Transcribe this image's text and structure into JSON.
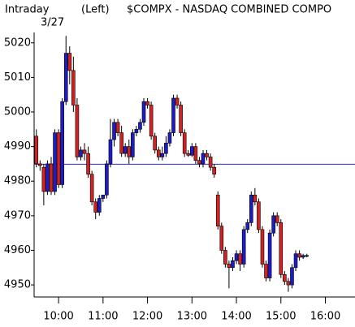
{
  "chart_data": {
    "type": "candlestick",
    "title": "$COMPX - NASDAQ COMBINED COMPO",
    "period": "Intraday",
    "date": "3/27",
    "axis_side": "(Left)",
    "up_color": "#1c1cc8",
    "down_color": "#d42222",
    "reference_line": {
      "value": 4984.9,
      "color": "#2a2ad0"
    },
    "xlim": [
      567,
      1000
    ],
    "ylim": [
      4946.5,
      5023
    ],
    "yticks": [
      4950,
      4960,
      4970,
      4980,
      4990,
      5000,
      5010,
      5020
    ],
    "xticks": [
      {
        "value": 600,
        "label": "10:00"
      },
      {
        "value": 660,
        "label": "11:00"
      },
      {
        "value": 720,
        "label": "12:00"
      },
      {
        "value": 780,
        "label": "13:00"
      },
      {
        "value": 840,
        "label": "14:00"
      },
      {
        "value": 900,
        "label": "15:00"
      },
      {
        "value": 960,
        "label": "16:00"
      }
    ],
    "x": [
      570,
      575,
      580,
      585,
      590,
      595,
      600,
      605,
      610,
      615,
      620,
      625,
      630,
      635,
      640,
      645,
      650,
      655,
      660,
      665,
      670,
      675,
      680,
      685,
      690,
      695,
      700,
      705,
      710,
      715,
      720,
      725,
      730,
      735,
      740,
      745,
      750,
      755,
      760,
      765,
      770,
      775,
      780,
      785,
      790,
      795,
      800,
      805,
      810,
      815,
      820,
      825,
      830,
      835,
      840,
      845,
      850,
      855,
      860,
      865,
      870,
      875,
      880,
      885,
      890,
      895,
      900,
      905,
      910,
      915,
      920,
      925,
      930,
      935
    ],
    "open": [
      4993,
      4985,
      4984,
      4977,
      4985,
      4977,
      4994,
      4979,
      5003,
      5017,
      5012,
      5002,
      4987,
      4989,
      4988,
      4982,
      4974,
      4971,
      4975,
      4976,
      4985,
      4992,
      4997,
      4994,
      4988,
      4990,
      4987,
      4994,
      4995,
      4997,
      5003,
      5002,
      4993,
      4989,
      4987,
      4988,
      4991,
      4994,
      5004,
      5002,
      4994,
      4988,
      4987.5,
      4990,
      4986,
      4985,
      4988,
      4987,
      4984,
      4976,
      4967,
      4960,
      4956,
      4955,
      4957,
      4959,
      4956,
      4966,
      4968,
      4976,
      4974,
      4966,
      4956,
      4952,
      4965,
      4970,
      4968,
      4953,
      4951,
      4950,
      4955,
      4959,
      4958,
      4958.5
    ],
    "high": [
      4995,
      4986,
      4985,
      4986,
      4987,
      4995,
      4995,
      5004,
      5022,
      5019,
      5016,
      5004,
      4990,
      4991,
      4990,
      4983,
      4975,
      4976,
      4976,
      4986,
      4998,
      4998,
      4998,
      4996,
      4991,
      4992,
      4995,
      4996,
      4998,
      5004,
      5004,
      5003,
      4994,
      4990,
      4990,
      4993,
      4995,
      5005,
      5005,
      5003,
      4995,
      4989,
      4991,
      4991,
      4987,
      4989,
      4989,
      4988,
      4985,
      4977,
      4968,
      4961,
      4957,
      4958,
      4960,
      4960,
      4967,
      4969,
      4977,
      4978,
      4975,
      4967,
      4957,
      4966,
      4971,
      4971,
      4969,
      4954,
      4952,
      4956,
      4960,
      4960,
      4959,
      4959
    ],
    "low": [
      4984,
      4983,
      4973,
      4976,
      4976,
      4976,
      4978,
      4978,
      5002,
      5008,
      5000,
      4986,
      4986,
      4986,
      4981,
      4973,
      4969,
      4970,
      4974,
      4975,
      4984,
      4990,
      4993,
      4987,
      4987,
      4985,
      4986,
      4993,
      4994,
      4996,
      5001,
      4992,
      4988,
      4986,
      4986,
      4987,
      4990,
      4993,
      5001,
      4993,
      4987,
      4987,
      4987,
      4985,
      4984,
      4984,
      4986,
      4983,
      4981,
      4966,
      4959,
      4955,
      4949,
      4954,
      4956,
      4954,
      4955,
      4965,
      4967,
      4973,
      4965,
      4955,
      4951,
      4951,
      4964,
      4967,
      4952,
      4950,
      4948,
      4949,
      4954,
      4957,
      4957.5,
      4958
    ],
    "close": [
      4985,
      4984.5,
      4977,
      4985,
      4977,
      4994,
      4979,
      5003,
      5017,
      5012,
      5002,
      4987,
      4989,
      4988,
      4982,
      4974,
      4971,
      4975,
      4976,
      4985,
      4992,
      4997,
      4994,
      4988,
      4990,
      4987,
      4994,
      4995,
      4997,
      5003,
      5002,
      4993,
      4989,
      4987,
      4988,
      4991,
      4994,
      5004,
      5002,
      4994,
      4988,
      4987.5,
      4990,
      4986,
      4985,
      4988,
      4987,
      4984,
      4982,
      4967,
      4960,
      4956,
      4955,
      4957,
      4959,
      4956,
      4966,
      4968,
      4976,
      4974,
      4966,
      4956,
      4952,
      4965,
      4970,
      4968,
      4953,
      4951,
      4950,
      4955,
      4959,
      4958,
      4958.5,
      4958.5
    ]
  }
}
